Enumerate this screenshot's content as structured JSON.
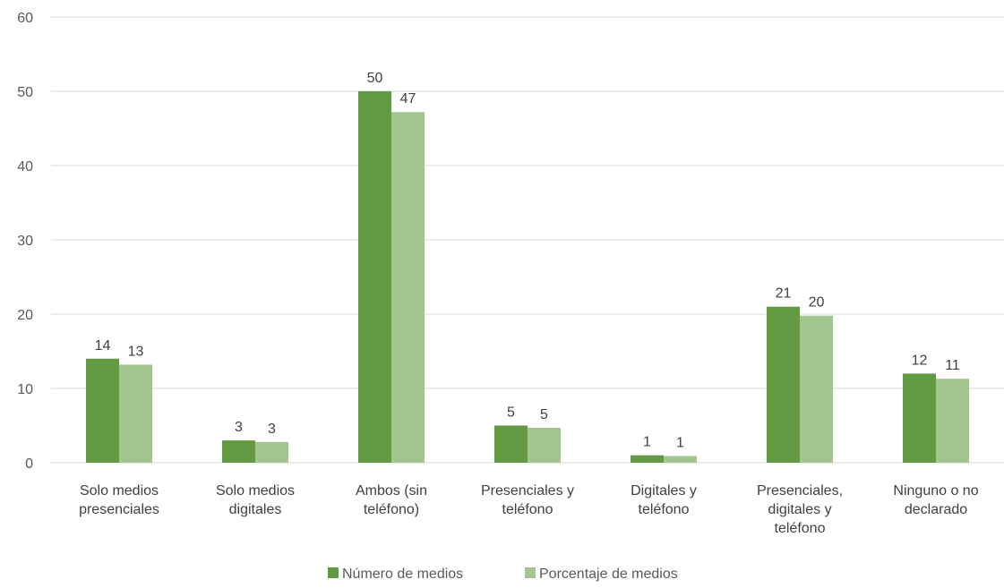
{
  "chart_data": {
    "type": "bar",
    "title": "",
    "xlabel": "",
    "ylabel": "",
    "ylim": [
      0,
      60
    ],
    "yticks": [
      0,
      10,
      20,
      30,
      40,
      50,
      60
    ],
    "grid": true,
    "legend_position": "bottom",
    "categories": [
      [
        "Solo medios",
        "presenciales"
      ],
      [
        "Solo medios",
        "digitales"
      ],
      [
        "Ambos (sin",
        "teléfono)"
      ],
      [
        "Presenciales y",
        "teléfono"
      ],
      [
        "Digitales y",
        "teléfono"
      ],
      [
        "Presenciales,",
        "digitales y",
        "teléfono"
      ],
      [
        "Ninguno o no",
        "declarado"
      ]
    ],
    "series": [
      {
        "name": "Número de medios",
        "color": "#629a41",
        "values": [
          14,
          3,
          50,
          5,
          1,
          21,
          12
        ],
        "labels": [
          "14",
          "3",
          "50",
          "5",
          "1",
          "21",
          "12"
        ]
      },
      {
        "name": "Porcentaje de medios",
        "color": "#a3c590",
        "values": [
          13.2,
          2.8,
          47.2,
          4.7,
          0.9,
          19.8,
          11.3
        ],
        "labels": [
          "13",
          "3",
          "47",
          "5",
          "1",
          "20",
          "11"
        ]
      }
    ]
  }
}
